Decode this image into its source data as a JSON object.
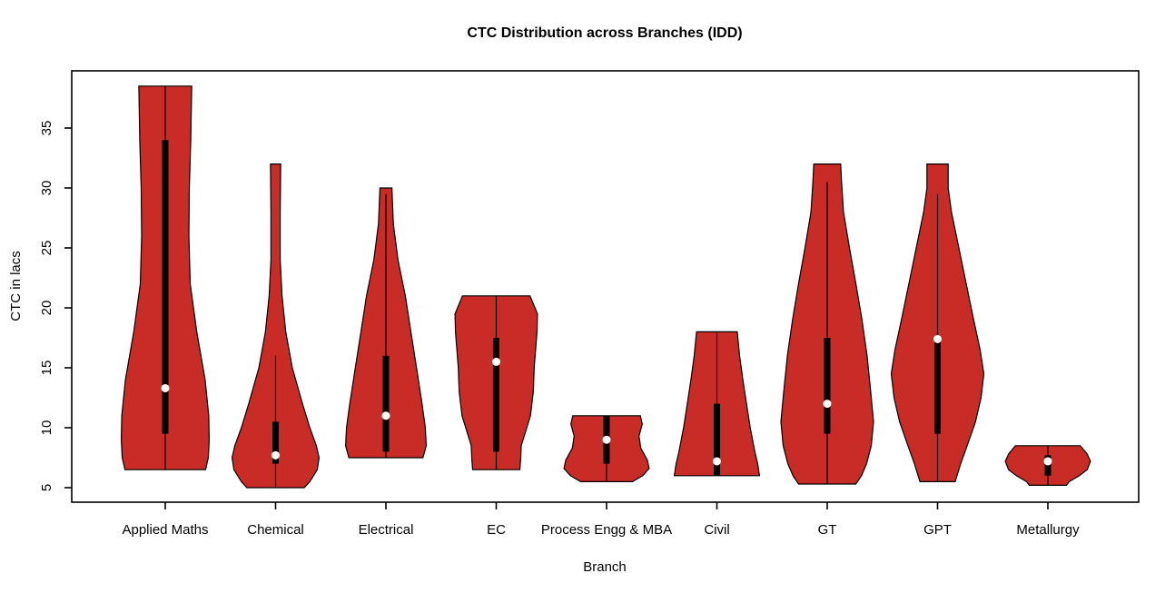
{
  "chart_data": {
    "type": "violin",
    "title": "CTC Distribution across Branches (IDD)",
    "xlabel": "Branch",
    "ylabel": "CTC in lacs",
    "ylim": [
      3.7,
      39.8
    ],
    "yticks": [
      5,
      10,
      15,
      20,
      25,
      30,
      35
    ],
    "grid": false,
    "legend": "none",
    "colors": {
      "violin_fill": "#C92B26",
      "violin_border": "#000000",
      "box": "#000000",
      "median_dot": "#FFFFFF",
      "axis": "#000000",
      "background": "#FFFFFF"
    },
    "categories": [
      "Applied Maths",
      "Chemical",
      "Electrical",
      "EC",
      "Process Engg & MBA",
      "Civil",
      "GT",
      "GPT",
      "Metallurgy"
    ],
    "series": [
      {
        "name": "Applied Maths",
        "min": 6.5,
        "max": 38.5,
        "q1": 9.5,
        "q3": 34,
        "median": 13.3,
        "whisker_low": 6.5,
        "whisker_high": 38.5,
        "profile": [
          [
            38.5,
            0.57
          ],
          [
            34,
            0.55
          ],
          [
            30,
            0.52
          ],
          [
            26,
            0.51
          ],
          [
            22,
            0.54
          ],
          [
            18,
            0.68
          ],
          [
            14,
            0.86
          ],
          [
            11,
            0.94
          ],
          [
            9,
            0.95
          ],
          [
            7.5,
            0.93
          ],
          [
            6.5,
            0.87
          ]
        ]
      },
      {
        "name": "Chemical",
        "min": 5,
        "max": 32,
        "q1": 7,
        "q3": 10.5,
        "median": 7.7,
        "whisker_low": 5,
        "whisker_high": 16,
        "profile": [
          [
            32,
            0.11
          ],
          [
            28,
            0.1
          ],
          [
            24,
            0.1
          ],
          [
            21,
            0.14
          ],
          [
            18,
            0.22
          ],
          [
            15,
            0.36
          ],
          [
            12,
            0.58
          ],
          [
            10,
            0.74
          ],
          [
            8.5,
            0.88
          ],
          [
            7.5,
            0.94
          ],
          [
            6.5,
            0.9
          ],
          [
            5.5,
            0.74
          ],
          [
            5,
            0.62
          ]
        ]
      },
      {
        "name": "Electrical",
        "min": 7.5,
        "max": 30,
        "q1": 8,
        "q3": 16,
        "median": 11,
        "whisker_low": 7.5,
        "whisker_high": 29.5,
        "profile": [
          [
            30,
            0.13
          ],
          [
            27,
            0.16
          ],
          [
            24,
            0.26
          ],
          [
            21,
            0.42
          ],
          [
            18,
            0.54
          ],
          [
            15,
            0.66
          ],
          [
            12,
            0.78
          ],
          [
            10,
            0.85
          ],
          [
            8.5,
            0.87
          ],
          [
            7.5,
            0.8
          ]
        ]
      },
      {
        "name": "EC",
        "min": 6.5,
        "max": 21,
        "q1": 8,
        "q3": 17.5,
        "median": 15.5,
        "whisker_low": 6.5,
        "whisker_high": 21,
        "profile": [
          [
            21,
            0.73
          ],
          [
            19.5,
            0.89
          ],
          [
            18,
            0.88
          ],
          [
            15,
            0.82
          ],
          [
            13,
            0.8
          ],
          [
            11,
            0.74
          ],
          [
            9.5,
            0.62
          ],
          [
            8.5,
            0.54
          ],
          [
            7.5,
            0.53
          ],
          [
            6.5,
            0.51
          ]
        ]
      },
      {
        "name": "Process Engg & MBA",
        "min": 5.5,
        "max": 11,
        "q1": 7,
        "q3": 11,
        "median": 9,
        "whisker_low": 5.5,
        "whisker_high": 11,
        "profile": [
          [
            11,
            0.73
          ],
          [
            10.3,
            0.77
          ],
          [
            9.3,
            0.7
          ],
          [
            8.3,
            0.74
          ],
          [
            7.3,
            0.88
          ],
          [
            6.6,
            0.92
          ],
          [
            6,
            0.78
          ],
          [
            5.5,
            0.56
          ]
        ]
      },
      {
        "name": "Civil",
        "min": 6,
        "max": 18,
        "q1": 6,
        "q3": 12,
        "median": 7.2,
        "whisker_low": 6,
        "whisker_high": 18,
        "profile": [
          [
            18,
            0.44
          ],
          [
            16,
            0.49
          ],
          [
            14,
            0.56
          ],
          [
            12,
            0.64
          ],
          [
            10,
            0.72
          ],
          [
            8,
            0.82
          ],
          [
            7,
            0.88
          ],
          [
            6,
            0.92
          ]
        ]
      },
      {
        "name": "GT",
        "min": 5.3,
        "max": 32,
        "q1": 9.5,
        "q3": 17.5,
        "median": 12,
        "whisker_low": 5.3,
        "whisker_high": 30.5,
        "profile": [
          [
            32,
            0.29
          ],
          [
            30.5,
            0.31
          ],
          [
            28,
            0.35
          ],
          [
            25,
            0.48
          ],
          [
            22,
            0.62
          ],
          [
            19,
            0.75
          ],
          [
            16,
            0.86
          ],
          [
            13,
            0.94
          ],
          [
            10.5,
            1.0
          ],
          [
            8.5,
            0.95
          ],
          [
            7,
            0.85
          ],
          [
            6,
            0.74
          ],
          [
            5.3,
            0.62
          ]
        ]
      },
      {
        "name": "GPT",
        "min": 5.5,
        "max": 32,
        "q1": 9.5,
        "q3": 17.5,
        "median": 17.4,
        "whisker_low": 5.5,
        "whisker_high": 29.5,
        "profile": [
          [
            32,
            0.23
          ],
          [
            30,
            0.23
          ],
          [
            28,
            0.3
          ],
          [
            25,
            0.46
          ],
          [
            22,
            0.62
          ],
          [
            19,
            0.78
          ],
          [
            16.5,
            0.92
          ],
          [
            14.5,
            1.0
          ],
          [
            12.5,
            0.94
          ],
          [
            10.5,
            0.82
          ],
          [
            8.5,
            0.64
          ],
          [
            7,
            0.5
          ],
          [
            6,
            0.42
          ],
          [
            5.5,
            0.38
          ]
        ]
      },
      {
        "name": "Metallurgy",
        "min": 5.2,
        "max": 8.5,
        "q1": 6,
        "q3": 7.7,
        "median": 7.2,
        "whisker_low": 5.2,
        "whisker_high": 8.5,
        "profile": [
          [
            8.5,
            0.7
          ],
          [
            7.8,
            0.85
          ],
          [
            7.2,
            0.92
          ],
          [
            6.5,
            0.85
          ],
          [
            6,
            0.68
          ],
          [
            5.5,
            0.46
          ],
          [
            5.2,
            0.4
          ]
        ]
      }
    ]
  }
}
